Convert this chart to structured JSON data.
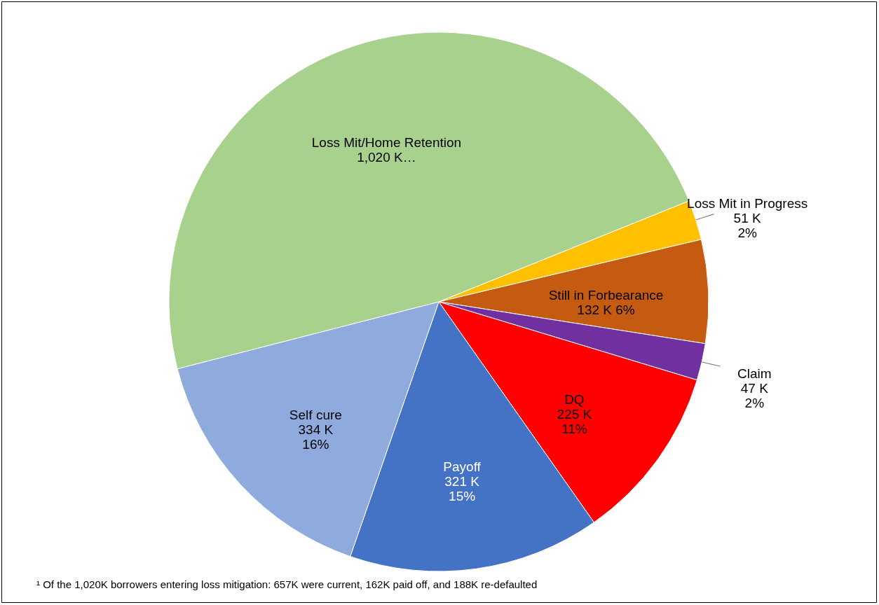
{
  "chart_data": {
    "type": "pie",
    "categories": [
      "Loss Mit in Progress",
      "Still in Forbearance",
      "Claim",
      "DQ",
      "Payoff",
      "Self cure",
      "Loss Mit/Home Retention"
    ],
    "values": [
      51,
      132,
      47,
      225,
      321,
      334,
      1020
    ],
    "colors": [
      "#ffc000",
      "#c55a11",
      "#7030a0",
      "#ff0000",
      "#4472c4",
      "#8faadc",
      "#a9d18e"
    ],
    "value_labels": [
      "51 K\n2%",
      "132 K 6%",
      "47 K\n2%",
      "225 K\n11%",
      "321 K\n15%",
      "334 K\n16%",
      "1,020 K…"
    ],
    "annotations": [
      "¹ Of the 1,020K borrowers entering loss mitigation: 657K were current, 162K paid off, and 188K re-defaulted"
    ]
  }
}
